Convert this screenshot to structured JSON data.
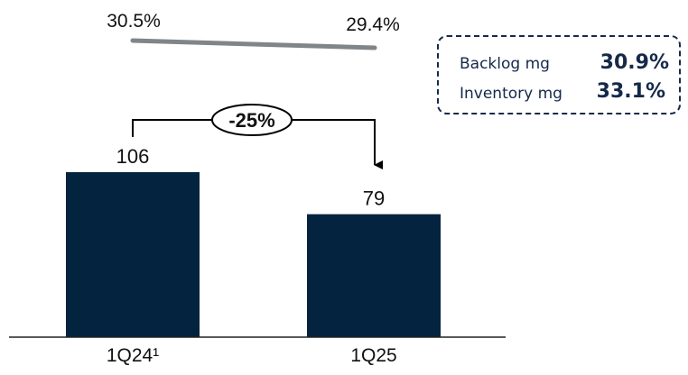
{
  "chart_data": {
    "type": "bar",
    "categories": [
      "1Q24¹",
      "1Q25"
    ],
    "values": [
      106,
      79
    ],
    "value_labels": [
      "106",
      "79"
    ],
    "ylim": [
      0,
      120
    ],
    "grid": false,
    "margin_line": {
      "values": [
        30.5,
        29.4
      ],
      "labels": [
        "30.5%",
        "29.4%"
      ]
    },
    "change_annotation": "-25%",
    "info_box": {
      "rows": [
        {
          "label": "Backlog mg",
          "value": "30.9%"
        },
        {
          "label": "Inventory mg",
          "value": "33.1%"
        }
      ]
    }
  },
  "colors": {
    "bar": "#03233f",
    "margin_line": "#808589",
    "text": "#111111",
    "box_border": "#15294a",
    "box_text": "#15294a"
  }
}
